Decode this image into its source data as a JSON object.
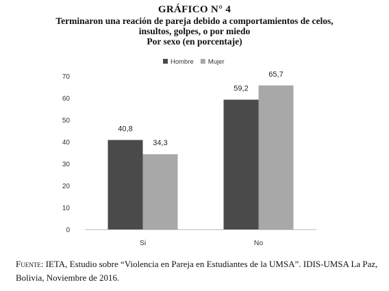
{
  "header": {
    "figure_number": "GRÁFICO N° 4",
    "title_line1": "Terminaron una reación de pareja debido a comportamientos de celos,",
    "title_line2": "insultos, golpes, o por miedo",
    "subtitle": "Por sexo (en porcentaje)"
  },
  "chart_data": {
    "type": "bar",
    "categories": [
      "Si",
      "No"
    ],
    "series": [
      {
        "name": "Hombre",
        "values": [
          40.8,
          59.2
        ],
        "labels": [
          "40,8",
          "59,2"
        ],
        "color": "#4a4a4a"
      },
      {
        "name": "Mujer",
        "values": [
          34.3,
          65.7
        ],
        "labels": [
          "34,3",
          "65,7"
        ],
        "color": "#a8a8a8"
      }
    ],
    "ylim": [
      0,
      70
    ],
    "yticks": [
      0,
      10,
      20,
      30,
      40,
      50,
      60,
      70
    ],
    "grid": false,
    "legend_position": "top-center"
  },
  "source": {
    "label": "Fuente:",
    "text": " IETA, Estudio sobre “Violencia en Pareja en Estudiantes de la UMSA”. IDIS-UMSA La Paz, Bolivia, Noviembre de 2016."
  }
}
